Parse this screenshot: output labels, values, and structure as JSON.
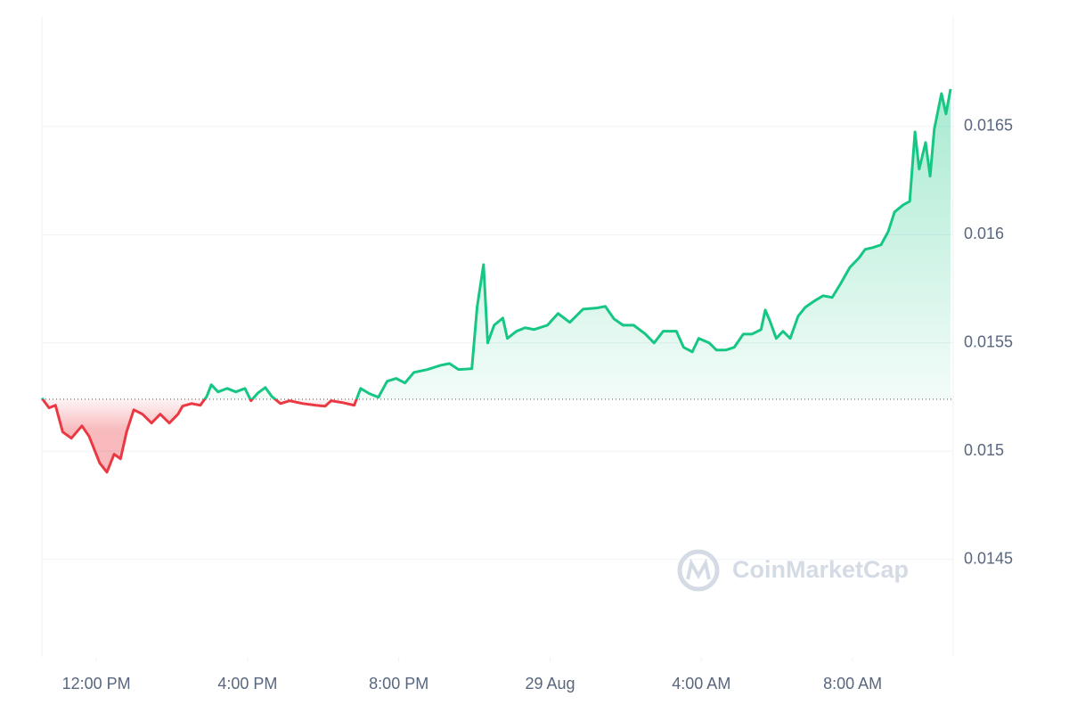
{
  "chart_data": {
    "type": "line",
    "watermark": "CoinMarketCap",
    "reference": 0.01524,
    "colors": {
      "up": "#16c784",
      "down": "#ea3943"
    },
    "x": [
      10.56,
      10.75,
      10.92,
      11.11,
      11.34,
      11.62,
      11.81,
      12.09,
      12.28,
      12.47,
      12.64,
      12.8,
      12.99,
      13.22,
      13.46,
      13.69,
      13.93,
      14.16,
      14.28,
      14.52,
      14.75,
      14.92,
      15.04,
      15.22,
      15.46,
      15.69,
      15.93,
      16.09,
      16.28,
      16.47,
      16.64,
      16.87,
      17.11,
      17.46,
      17.81,
      18.05,
      18.21,
      18.52,
      18.82,
      18.99,
      19.22,
      19.46,
      19.69,
      19.93,
      20.16,
      20.4,
      20.75,
      21.11,
      21.34,
      21.58,
      21.93,
      22.07,
      22.24,
      22.35,
      22.52,
      22.75,
      22.87,
      23.11,
      23.34,
      23.58,
      23.93,
      24.21,
      24.52,
      24.87,
      25.22,
      25.46,
      25.69,
      25.93,
      26.21,
      26.52,
      26.75,
      26.99,
      27.34,
      27.53,
      27.76,
      27.93,
      28.21,
      28.4,
      28.64,
      28.87,
      29.11,
      29.34,
      29.58,
      29.69,
      29.81,
      29.98,
      30.16,
      30.35,
      30.56,
      30.75,
      30.99,
      31.22,
      31.46,
      31.69,
      31.93,
      32.16,
      32.33,
      32.52,
      32.75,
      32.94,
      33.11,
      33.34,
      33.51,
      33.65,
      33.76,
      33.93,
      34.05,
      34.16,
      34.35,
      34.47,
      34.59
    ],
    "values": [
      0.015245,
      0.0152,
      0.015212,
      0.015089,
      0.01506,
      0.015117,
      0.015068,
      0.014945,
      0.014903,
      0.014986,
      0.014965,
      0.015089,
      0.015191,
      0.015171,
      0.01513,
      0.015171,
      0.01513,
      0.015171,
      0.015208,
      0.01522,
      0.015212,
      0.015253,
      0.015307,
      0.015274,
      0.01529,
      0.015274,
      0.01529,
      0.015233,
      0.01527,
      0.015294,
      0.015253,
      0.01522,
      0.015233,
      0.01522,
      0.015212,
      0.015208,
      0.015233,
      0.015224,
      0.015212,
      0.01529,
      0.015266,
      0.015249,
      0.015323,
      0.015336,
      0.015315,
      0.015364,
      0.015377,
      0.015397,
      0.015405,
      0.015377,
      0.015381,
      0.015665,
      0.015862,
      0.0155,
      0.015582,
      0.015615,
      0.015521,
      0.015554,
      0.01557,
      0.015562,
      0.015582,
      0.015636,
      0.015595,
      0.015656,
      0.015661,
      0.015669,
      0.015611,
      0.015582,
      0.015582,
      0.015541,
      0.0155,
      0.015554,
      0.015554,
      0.01548,
      0.015459,
      0.015521,
      0.0155,
      0.015467,
      0.015467,
      0.01548,
      0.015541,
      0.015541,
      0.015562,
      0.015652,
      0.015603,
      0.015521,
      0.015554,
      0.015521,
      0.015624,
      0.015665,
      0.015694,
      0.015718,
      0.01571,
      0.015776,
      0.01585,
      0.015891,
      0.015932,
      0.01594,
      0.015953,
      0.016014,
      0.016105,
      0.016138,
      0.016154,
      0.016475,
      0.016303,
      0.016426,
      0.01627,
      0.016488,
      0.016652,
      0.016558,
      0.016673
    ],
    "xlim": [
      10.56,
      34.66
    ],
    "xticks": [
      {
        "value": 12,
        "label": "12:00 PM"
      },
      {
        "value": 16,
        "label": "4:00 PM"
      },
      {
        "value": 20,
        "label": "8:00 PM"
      },
      {
        "value": 24,
        "label": "29 Aug"
      },
      {
        "value": 28,
        "label": "4:00 AM"
      },
      {
        "value": 32,
        "label": "8:00 AM"
      }
    ],
    "ylim": [
      0.01405,
      0.01701
    ],
    "yticks": [
      0.0145,
      0.015,
      0.0155,
      0.016,
      0.0165
    ],
    "grid": true
  }
}
